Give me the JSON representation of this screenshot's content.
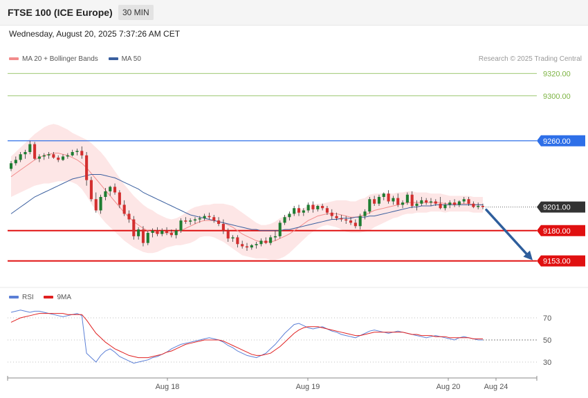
{
  "header": {
    "title": "FTSE 100 (ICE Europe)",
    "timeframe": "30 MIN",
    "datetime": "Wednesday, August 20, 2025 7:37:26 AM CET",
    "copyright": "Research © 2025 Trading Central"
  },
  "legend": {
    "ma20": {
      "label": "MA 20 + Bollinger Bands",
      "color": "#f28b8b"
    },
    "ma50": {
      "label": "MA 50",
      "color": "#3a5f9f"
    }
  },
  "rsi_legend": {
    "rsi": {
      "label": "RSI",
      "color": "#5b7fd6"
    },
    "ma9": {
      "label": "9MA",
      "color": "#e02020"
    }
  },
  "levels": {
    "r2": {
      "value": 9320,
      "label": "9320.00",
      "color": "#7cb342"
    },
    "r1": {
      "value": 9300,
      "label": "9300.00",
      "color": "#7cb342"
    },
    "pivot": {
      "value": 9260,
      "label": "9260.00",
      "color": "#2e6fe8"
    },
    "last": {
      "value": 9201,
      "label": "9201.00",
      "color": "#333333"
    },
    "s1": {
      "value": 9180,
      "label": "9180.00",
      "color": "#e01010"
    },
    "s2": {
      "value": 9153,
      "label": "9153.00",
      "color": "#e01010"
    }
  },
  "chart_data": [
    {
      "type": "candlestick",
      "title": "FTSE 100 (ICE Europe)",
      "ylim": [
        9138,
        9330
      ],
      "grid": false,
      "x_tick_labels": [
        "Aug 18",
        "Aug 19",
        "Aug 20",
        "Aug 24"
      ],
      "candles": [
        [
          9235,
          9242,
          9233,
          9240
        ],
        [
          9240,
          9246,
          9238,
          9243
        ],
        [
          9243,
          9250,
          9241,
          9248
        ],
        [
          9248,
          9252,
          9244,
          9250
        ],
        [
          9250,
          9260,
          9248,
          9257
        ],
        [
          9257,
          9259,
          9243,
          9244
        ],
        [
          9244,
          9248,
          9241,
          9246
        ],
        [
          9246,
          9249,
          9243,
          9247
        ],
        [
          9247,
          9250,
          9244,
          9248
        ],
        [
          9248,
          9250,
          9244,
          9245
        ],
        [
          9245,
          9247,
          9241,
          9243
        ],
        [
          9243,
          9248,
          9242,
          9246
        ],
        [
          9246,
          9249,
          9244,
          9247
        ],
        [
          9247,
          9252,
          9246,
          9250
        ],
        [
          9250,
          9253,
          9247,
          9251
        ],
        [
          9251,
          9255,
          9244,
          9247
        ],
        [
          9247,
          9250,
          9220,
          9225
        ],
        [
          9225,
          9228,
          9206,
          9208
        ],
        [
          9208,
          9214,
          9196,
          9198
        ],
        [
          9198,
          9212,
          9195,
          9210
        ],
        [
          9210,
          9218,
          9207,
          9215
        ],
        [
          9215,
          9220,
          9211,
          9219
        ],
        [
          9219,
          9222,
          9212,
          9214
        ],
        [
          9214,
          9216,
          9200,
          9203
        ],
        [
          9203,
          9207,
          9193,
          9195
        ],
        [
          9195,
          9198,
          9187,
          9190
        ],
        [
          9190,
          9193,
          9172,
          9175
        ],
        [
          9175,
          9183,
          9172,
          9181
        ],
        [
          9181,
          9184,
          9166,
          9169
        ],
        [
          9169,
          9180,
          9167,
          9178
        ],
        [
          9178,
          9182,
          9174,
          9180
        ],
        [
          9180,
          9183,
          9175,
          9177
        ],
        [
          9177,
          9182,
          9175,
          9180
        ],
        [
          9180,
          9183,
          9176,
          9178
        ],
        [
          9178,
          9181,
          9174,
          9176
        ],
        [
          9176,
          9182,
          9173,
          9180
        ],
        [
          9180,
          9191,
          9178,
          9189
        ],
        [
          9189,
          9192,
          9186,
          9188
        ],
        [
          9188,
          9191,
          9185,
          9189
        ],
        [
          9189,
          9192,
          9186,
          9190
        ],
        [
          9190,
          9193,
          9187,
          9191
        ],
        [
          9191,
          9195,
          9189,
          9193
        ],
        [
          9193,
          9196,
          9190,
          9192
        ],
        [
          9192,
          9194,
          9187,
          9189
        ],
        [
          9189,
          9192,
          9184,
          9186
        ],
        [
          9186,
          9190,
          9177,
          9180
        ],
        [
          9180,
          9182,
          9170,
          9173
        ],
        [
          9173,
          9176,
          9170,
          9174
        ],
        [
          9174,
          9176,
          9165,
          9168
        ],
        [
          9168,
          9171,
          9164,
          9166
        ],
        [
          9166,
          9169,
          9162,
          9165
        ],
        [
          9165,
          9168,
          9163,
          9167
        ],
        [
          9167,
          9170,
          9164,
          9168
        ],
        [
          9168,
          9173,
          9166,
          9171
        ],
        [
          9171,
          9174,
          9168,
          9169
        ],
        [
          9169,
          9176,
          9167,
          9174
        ],
        [
          9174,
          9180,
          9171,
          9175
        ],
        [
          9175,
          9189,
          9173,
          9187
        ],
        [
          9187,
          9194,
          9185,
          9192
        ],
        [
          9192,
          9197,
          9189,
          9195
        ],
        [
          9195,
          9202,
          9193,
          9200
        ],
        [
          9200,
          9203,
          9193,
          9196
        ],
        [
          9196,
          9200,
          9193,
          9198
        ],
        [
          9198,
          9205,
          9196,
          9203
        ],
        [
          9203,
          9206,
          9196,
          9199
        ],
        [
          9199,
          9203,
          9197,
          9202
        ],
        [
          9202,
          9204,
          9198,
          9200
        ],
        [
          9200,
          9202,
          9194,
          9196
        ],
        [
          9196,
          9199,
          9190,
          9193
        ],
        [
          9193,
          9196,
          9189,
          9191
        ],
        [
          9191,
          9194,
          9188,
          9190
        ],
        [
          9190,
          9193,
          9186,
          9189
        ],
        [
          9189,
          9192,
          9185,
          9187
        ],
        [
          9187,
          9190,
          9182,
          9184
        ],
        [
          9184,
          9195,
          9181,
          9193
        ],
        [
          9193,
          9199,
          9190,
          9197
        ],
        [
          9197,
          9210,
          9195,
          9208
        ],
        [
          9208,
          9211,
          9202,
          9204
        ],
        [
          9204,
          9212,
          9202,
          9210
        ],
        [
          9210,
          9214,
          9207,
          9213
        ],
        [
          9213,
          9216,
          9204,
          9206
        ],
        [
          9206,
          9211,
          9203,
          9209
        ],
        [
          9209,
          9213,
          9201,
          9203
        ],
        [
          9203,
          9207,
          9200,
          9205
        ],
        [
          9205,
          9214,
          9203,
          9212
        ],
        [
          9212,
          9215,
          9200,
          9202
        ],
        [
          9202,
          9207,
          9198,
          9204
        ],
        [
          9204,
          9210,
          9202,
          9207
        ],
        [
          9207,
          9209,
          9203,
          9205
        ],
        [
          9205,
          9209,
          9202,
          9206
        ],
        [
          9206,
          9208,
          9202,
          9204
        ],
        [
          9204,
          9210,
          9199,
          9200
        ],
        [
          9200,
          9205,
          9198,
          9203
        ],
        [
          9203,
          9207,
          9200,
          9205
        ],
        [
          9205,
          9208,
          9201,
          9203
        ],
        [
          9203,
          9207,
          9201,
          9206
        ],
        [
          9206,
          9210,
          9204,
          9208
        ],
        [
          9208,
          9210,
          9202,
          9204
        ],
        [
          9204,
          9206,
          9200,
          9201
        ],
        [
          9201,
          9205,
          9199,
          9202
        ],
        [
          9202,
          9204,
          9199,
          9201
        ]
      ],
      "ma20": [
        9228,
        9231,
        9234,
        9237,
        9240,
        9243,
        9245,
        9247,
        9248,
        9249,
        9249,
        9248,
        9247,
        9245,
        9243,
        9240,
        9236,
        9231,
        9226,
        9221,
        9216,
        9211,
        9206,
        9201,
        9196,
        9192,
        9188,
        9185,
        9182,
        9180,
        9179,
        9178,
        9178,
        9178,
        9178,
        9179,
        9180,
        9182,
        9184,
        9186,
        9188,
        9189,
        9189,
        9189,
        9188,
        9187,
        9185,
        9183,
        9180,
        9177,
        9175,
        9173,
        9171,
        9170,
        9170,
        9170,
        9171,
        9173,
        9175,
        9177,
        9180,
        9183,
        9186,
        9189,
        9191,
        9193,
        9194,
        9195,
        9195,
        9195,
        9194,
        9193,
        9192,
        9192,
        9193,
        9194,
        9196,
        9198,
        9199,
        9200,
        9201,
        9202,
        9203,
        9204,
        9205,
        9205,
        9205,
        9205,
        9205,
        9205,
        9205,
        9205,
        9204,
        9204,
        9204,
        9204,
        9204,
        9204,
        9203,
        9203,
        9203
      ],
      "ma50": [
        9195,
        9198,
        9201,
        9204,
        9207,
        9210,
        9212,
        9214,
        9216,
        9218,
        9220,
        9222,
        9224,
        9226,
        9227,
        9228,
        9229,
        9230,
        9230,
        9230,
        9229,
        9228,
        9227,
        9225,
        9223,
        9221,
        9219,
        9217,
        9214,
        9212,
        9210,
        9208,
        9206,
        9204,
        9202,
        9200,
        9198,
        9196,
        9194,
        9193,
        9192,
        9191,
        9190,
        9189,
        9188,
        9187,
        9186,
        9185,
        9184,
        9183,
        9182,
        9181,
        9181,
        9180,
        9180,
        9180,
        9180,
        9180,
        9181,
        9181,
        9182,
        9183,
        9184,
        9185,
        9186,
        9187,
        9188,
        9189,
        9190,
        9190,
        9191,
        9191,
        9191,
        9192,
        9192,
        9192,
        9193,
        9193,
        9194,
        9195,
        9196,
        9197,
        9198,
        9199,
        9200,
        9201,
        9201,
        9202,
        9202,
        9202,
        9203,
        9203,
        9203,
        9203,
        9203,
        9203,
        9203,
        9203,
        9203,
        9203,
        9203
      ],
      "bb_width": [
        18,
        19,
        20,
        21,
        22,
        23,
        24,
        25,
        26,
        26,
        25,
        24,
        23,
        22,
        22,
        23,
        25,
        27,
        28,
        29,
        29,
        28,
        27,
        26,
        25,
        24,
        23,
        22,
        21,
        20,
        19,
        17,
        15,
        13,
        12,
        12,
        13,
        14,
        15,
        15,
        14,
        14,
        14,
        15,
        16,
        17,
        18,
        19,
        19,
        19,
        18,
        17,
        16,
        15,
        15,
        16,
        17,
        18,
        18,
        17,
        16,
        15,
        14,
        13,
        12,
        11,
        10,
        10,
        11,
        12,
        13,
        14,
        14,
        14,
        15,
        15,
        16,
        15,
        14,
        13,
        12,
        11,
        11,
        10,
        10,
        10,
        9,
        9,
        9,
        8,
        8,
        8,
        8,
        7,
        7,
        7,
        7,
        7,
        7,
        7,
        7
      ]
    },
    {
      "type": "line",
      "title": "RSI",
      "ylim": [
        20,
        80
      ],
      "y_ticks": [
        30,
        50,
        70
      ],
      "series": [
        {
          "name": "RSI",
          "color": "#5b7fd6",
          "values": [
            75,
            76,
            77,
            76,
            75,
            76,
            76,
            75,
            74,
            73,
            72,
            71,
            72,
            73,
            74,
            72,
            38,
            34,
            30,
            36,
            40,
            42,
            39,
            35,
            33,
            31,
            29,
            30,
            31,
            32,
            34,
            35,
            37,
            39,
            42,
            44,
            46,
            47,
            48,
            49,
            50,
            51,
            52,
            51,
            50,
            48,
            45,
            43,
            40,
            38,
            36,
            35,
            34,
            36,
            38,
            42,
            46,
            51,
            56,
            60,
            64,
            65,
            63,
            61,
            60,
            61,
            62,
            60,
            58,
            57,
            55,
            54,
            53,
            52,
            54,
            56,
            58,
            59,
            58,
            57,
            56,
            57,
            58,
            57,
            56,
            55,
            54,
            53,
            52,
            53,
            54,
            53,
            52,
            51,
            50,
            52,
            53,
            52,
            51,
            50,
            50
          ]
        },
        {
          "name": "9MA",
          "color": "#e02020",
          "values": [
            66,
            68,
            70,
            71,
            72,
            73,
            74,
            74,
            74,
            74,
            74,
            74,
            73,
            73,
            73,
            73,
            68,
            62,
            56,
            52,
            48,
            45,
            42,
            40,
            38,
            36,
            35,
            34,
            34,
            34,
            35,
            36,
            37,
            39,
            40,
            42,
            44,
            46,
            47,
            48,
            49,
            50,
            50,
            50,
            50,
            49,
            47,
            45,
            43,
            41,
            39,
            37,
            36,
            36,
            37,
            38,
            41,
            44,
            48,
            52,
            56,
            59,
            61,
            62,
            62,
            62,
            61,
            60,
            59,
            58,
            57,
            56,
            55,
            54,
            54,
            55,
            56,
            57,
            57,
            57,
            57,
            57,
            57,
            57,
            56,
            55,
            55,
            54,
            54,
            54,
            53,
            53,
            53,
            52,
            52,
            52,
            52,
            52,
            51,
            51,
            51
          ]
        }
      ]
    }
  ]
}
